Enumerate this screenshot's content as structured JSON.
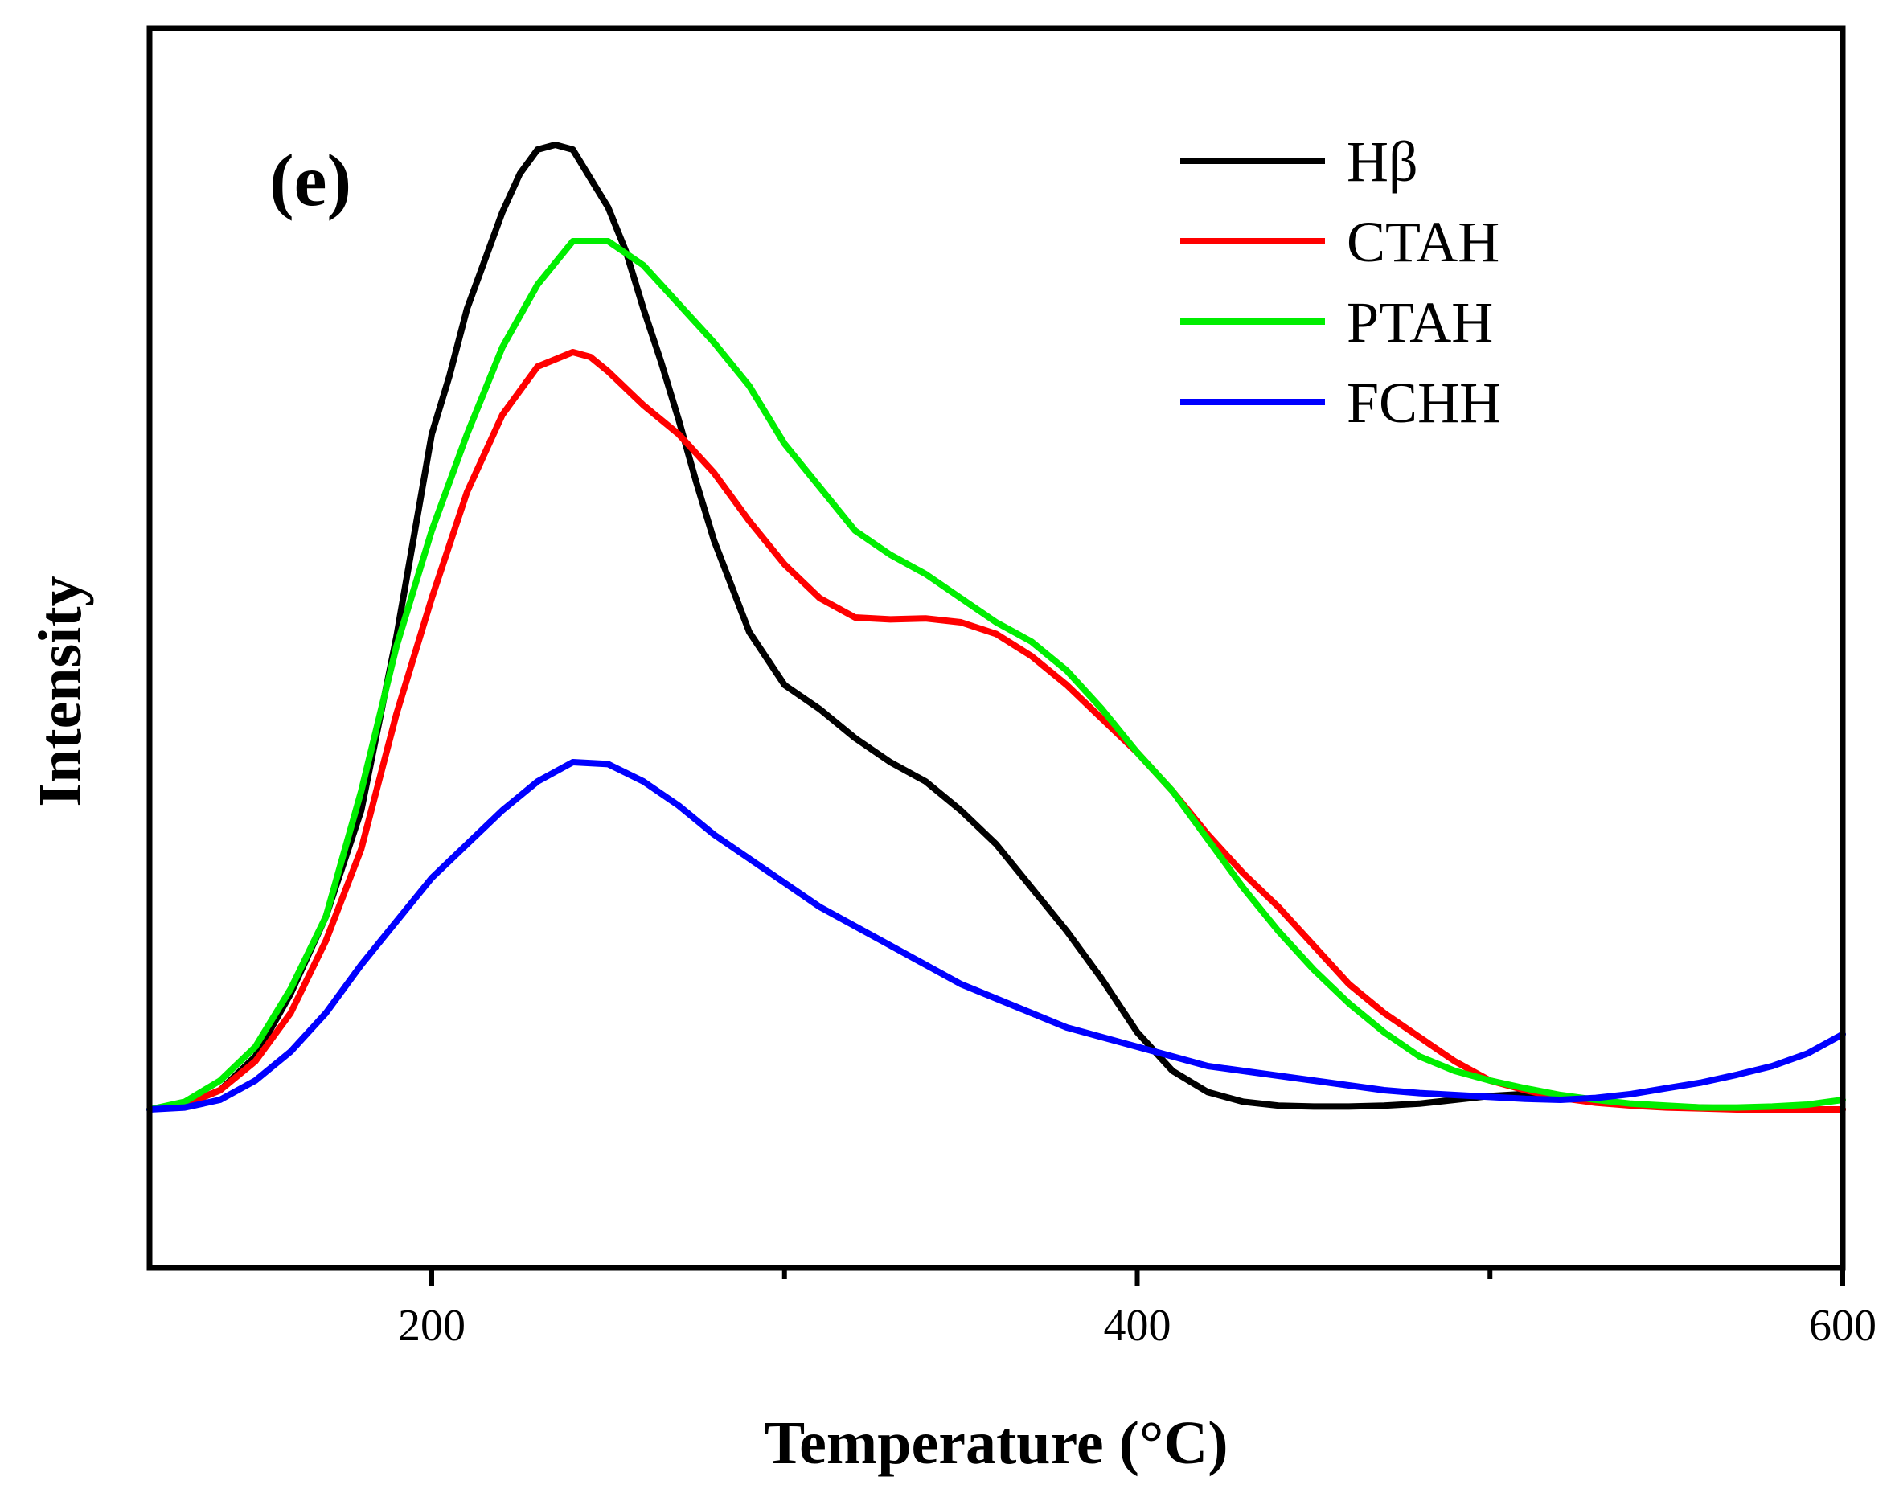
{
  "chart_data": {
    "type": "line",
    "panel_label": "(e)",
    "xlabel": "Temperature (°C)",
    "ylabel": "Intensity",
    "xlim": [
      120,
      600
    ],
    "ylim": [
      -0.16,
      1.0
    ],
    "xticks_major": [
      200,
      400,
      600
    ],
    "xticks_minor": [
      300,
      500
    ],
    "xtick_labels": [
      "200",
      "400",
      "600"
    ],
    "legend_position": "top-right",
    "series": [
      {
        "name": "Hβ",
        "color": "#000000",
        "x": [
          120,
          130,
          140,
          150,
          160,
          170,
          180,
          190,
          200,
          205,
          210,
          220,
          225,
          230,
          235,
          240,
          245,
          250,
          255,
          260,
          265,
          270,
          275,
          280,
          290,
          300,
          310,
          320,
          330,
          340,
          350,
          360,
          370,
          380,
          390,
          400,
          410,
          420,
          430,
          440,
          450,
          460,
          470,
          480,
          490,
          500,
          510,
          520,
          530,
          540,
          550,
          560,
          570,
          580,
          590,
          600
        ],
        "y": [
          0.0,
          0.005,
          0.02,
          0.055,
          0.12,
          0.2,
          0.31,
          0.49,
          0.7,
          0.76,
          0.83,
          0.93,
          0.97,
          0.995,
          1.0,
          0.995,
          0.965,
          0.935,
          0.89,
          0.83,
          0.775,
          0.715,
          0.65,
          0.59,
          0.495,
          0.44,
          0.415,
          0.385,
          0.36,
          0.34,
          0.31,
          0.275,
          0.23,
          0.185,
          0.135,
          0.08,
          0.04,
          0.018,
          0.008,
          0.004,
          0.003,
          0.003,
          0.004,
          0.006,
          0.01,
          0.014,
          0.016,
          0.014,
          0.01,
          0.005,
          0.003,
          0.002,
          0.001,
          0.0,
          0.0,
          0.0
        ]
      },
      {
        "name": "CTAH",
        "color": "#ff0000",
        "x": [
          120,
          130,
          140,
          150,
          160,
          170,
          180,
          190,
          200,
          210,
          220,
          230,
          240,
          245,
          250,
          260,
          270,
          280,
          290,
          300,
          310,
          320,
          330,
          340,
          350,
          360,
          370,
          380,
          390,
          400,
          410,
          420,
          430,
          440,
          450,
          460,
          470,
          480,
          490,
          500,
          510,
          520,
          530,
          540,
          550,
          560,
          570,
          580,
          590,
          600
        ],
        "y": [
          0.0,
          0.005,
          0.02,
          0.05,
          0.1,
          0.175,
          0.27,
          0.41,
          0.53,
          0.64,
          0.72,
          0.77,
          0.785,
          0.78,
          0.765,
          0.73,
          0.7,
          0.66,
          0.61,
          0.565,
          0.53,
          0.51,
          0.508,
          0.509,
          0.505,
          0.493,
          0.47,
          0.44,
          0.405,
          0.37,
          0.33,
          0.285,
          0.245,
          0.21,
          0.17,
          0.13,
          0.1,
          0.075,
          0.05,
          0.03,
          0.02,
          0.012,
          0.007,
          0.004,
          0.002,
          0.001,
          0.0,
          0.0,
          0.0,
          0.0
        ]
      },
      {
        "name": "PTAH",
        "color": "#00ee00",
        "x": [
          120,
          130,
          140,
          150,
          160,
          170,
          180,
          190,
          200,
          210,
          220,
          230,
          240,
          250,
          260,
          270,
          280,
          290,
          300,
          310,
          320,
          330,
          340,
          350,
          360,
          370,
          380,
          390,
          400,
          410,
          420,
          430,
          440,
          450,
          460,
          470,
          480,
          490,
          500,
          510,
          520,
          530,
          540,
          550,
          560,
          570,
          580,
          590,
          600
        ],
        "y": [
          0.0,
          0.008,
          0.03,
          0.065,
          0.125,
          0.2,
          0.33,
          0.48,
          0.6,
          0.7,
          0.79,
          0.855,
          0.9,
          0.9,
          0.875,
          0.835,
          0.795,
          0.75,
          0.69,
          0.645,
          0.6,
          0.575,
          0.555,
          0.53,
          0.505,
          0.485,
          0.455,
          0.415,
          0.37,
          0.33,
          0.28,
          0.23,
          0.185,
          0.145,
          0.11,
          0.08,
          0.055,
          0.04,
          0.03,
          0.022,
          0.015,
          0.01,
          0.006,
          0.004,
          0.002,
          0.002,
          0.003,
          0.005,
          0.01
        ]
      },
      {
        "name": "FCHH",
        "color": "#0000ff",
        "x": [
          120,
          130,
          140,
          150,
          160,
          170,
          180,
          190,
          200,
          210,
          220,
          230,
          240,
          250,
          260,
          270,
          280,
          290,
          300,
          310,
          320,
          330,
          340,
          350,
          360,
          370,
          380,
          390,
          400,
          410,
          420,
          430,
          440,
          450,
          460,
          470,
          480,
          490,
          500,
          510,
          520,
          530,
          540,
          550,
          560,
          570,
          580,
          590,
          600
        ],
        "y": [
          0.0,
          0.002,
          0.01,
          0.03,
          0.06,
          0.1,
          0.15,
          0.195,
          0.24,
          0.275,
          0.31,
          0.34,
          0.36,
          0.358,
          0.34,
          0.315,
          0.285,
          0.26,
          0.235,
          0.21,
          0.19,
          0.17,
          0.15,
          0.13,
          0.115,
          0.1,
          0.085,
          0.075,
          0.065,
          0.055,
          0.045,
          0.04,
          0.035,
          0.03,
          0.025,
          0.02,
          0.017,
          0.015,
          0.013,
          0.011,
          0.01,
          0.012,
          0.016,
          0.022,
          0.028,
          0.036,
          0.045,
          0.058,
          0.078
        ]
      }
    ]
  }
}
